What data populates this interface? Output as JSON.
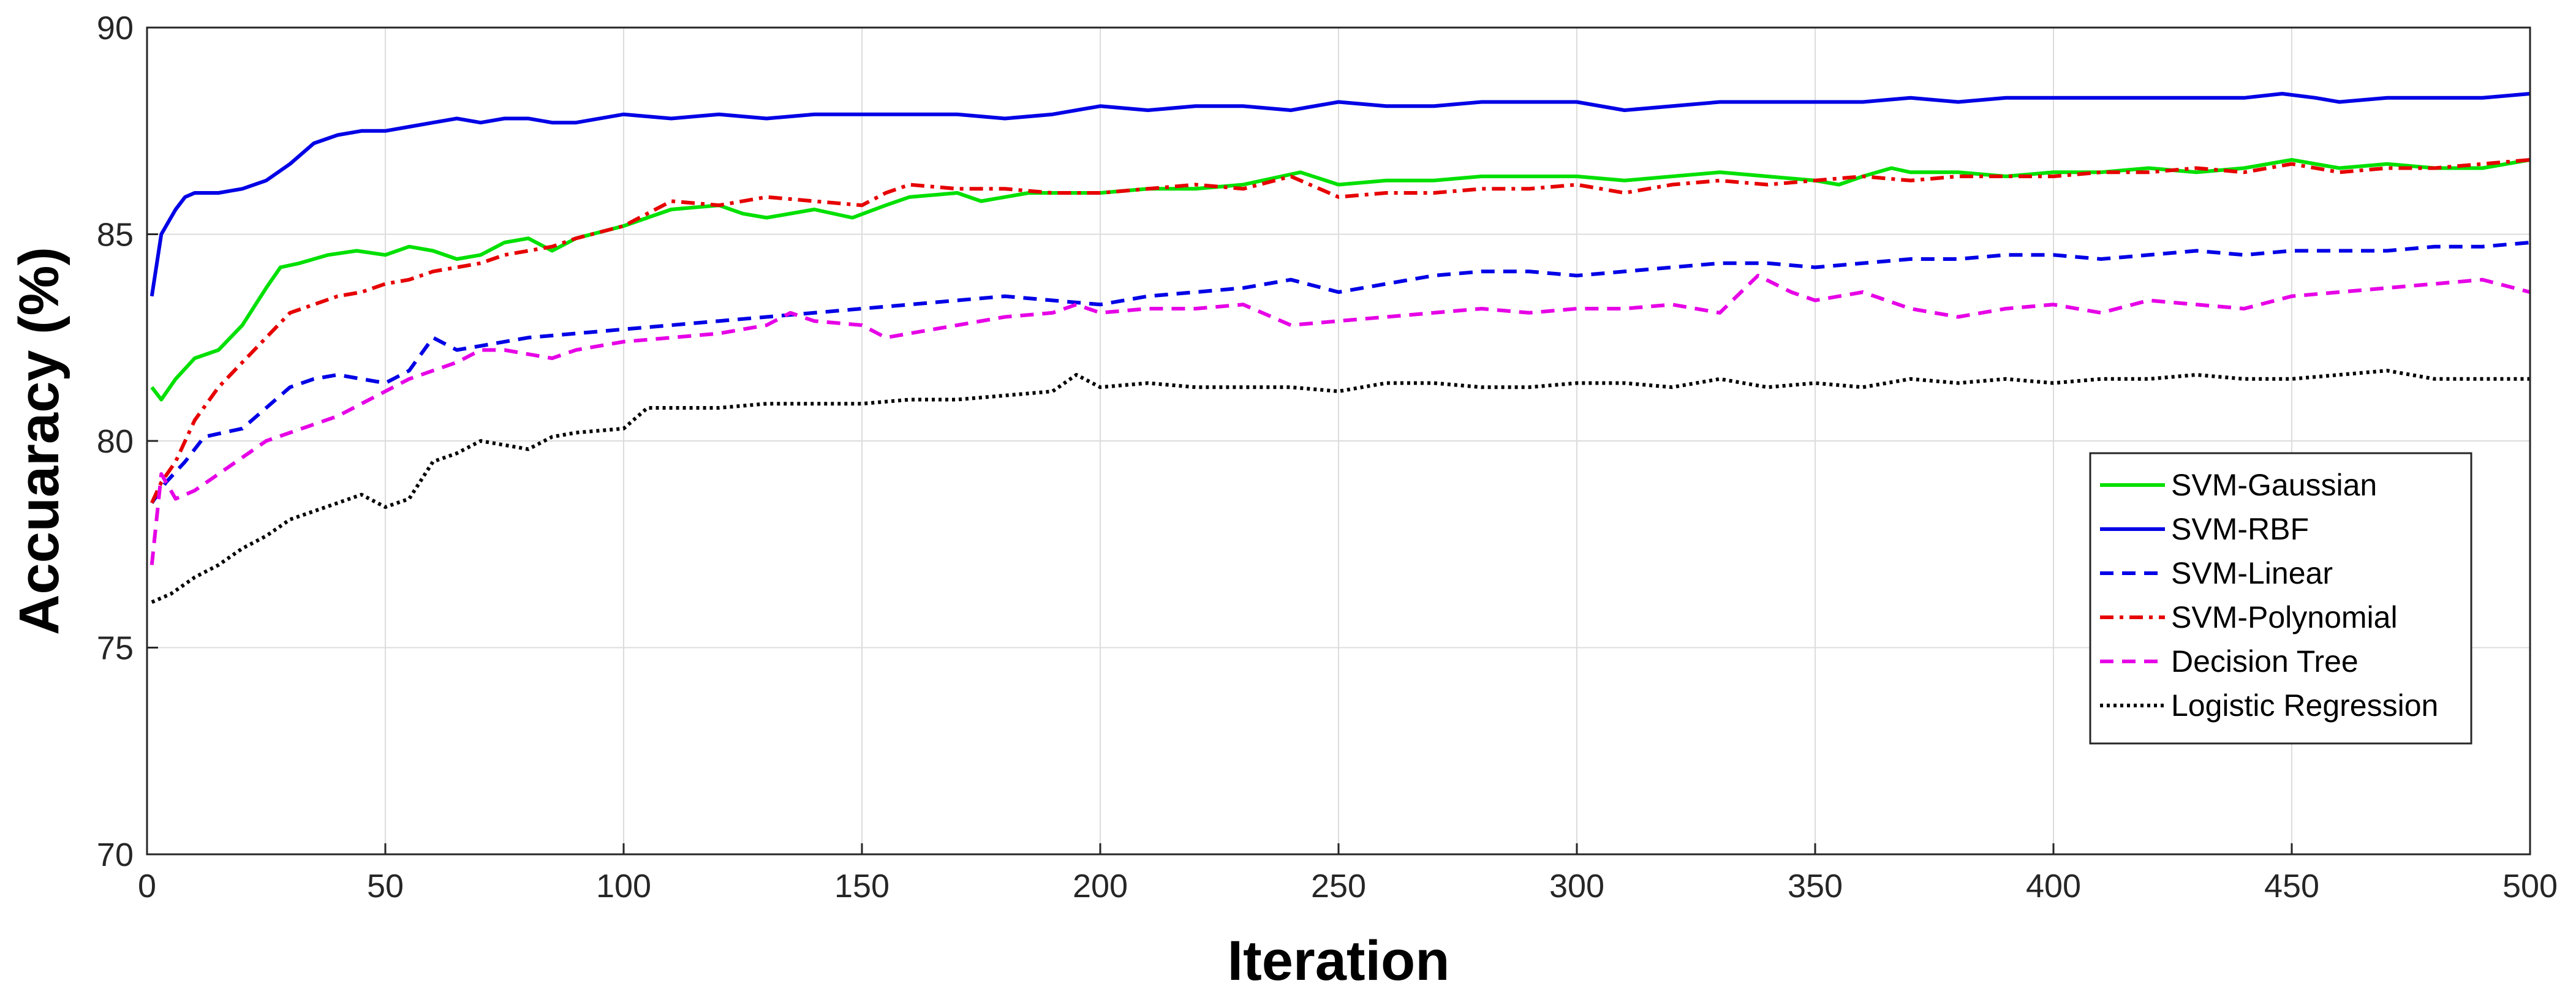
{
  "chart_data": {
    "type": "line",
    "title": "",
    "xlabel": "Iteration",
    "ylabel": "Accuaracy (%)",
    "xlim": [
      0,
      500
    ],
    "ylim": [
      70,
      90
    ],
    "xticks": [
      0,
      50,
      100,
      150,
      200,
      250,
      300,
      350,
      400,
      450,
      500
    ],
    "yticks": [
      70,
      75,
      80,
      85,
      90
    ],
    "grid": true,
    "legend_position": "right",
    "series": [
      {
        "name": "SVM-Gaussian",
        "color": "#00e000",
        "dash": "solid",
        "x": [
          1,
          3,
          6,
          10,
          15,
          20,
          25,
          28,
          32,
          38,
          44,
          50,
          55,
          60,
          65,
          70,
          75,
          80,
          85,
          90,
          100,
          110,
          120,
          125,
          130,
          140,
          148,
          155,
          160,
          170,
          175,
          185,
          190,
          200,
          210,
          220,
          230,
          242,
          250,
          260,
          270,
          280,
          290,
          300,
          310,
          320,
          330,
          340,
          350,
          355,
          360,
          366,
          370,
          380,
          390,
          400,
          410,
          420,
          430,
          440,
          450,
          460,
          470,
          480,
          490,
          500
        ],
        "y": [
          81.3,
          81.0,
          81.5,
          82.0,
          82.2,
          82.8,
          83.7,
          84.2,
          84.3,
          84.5,
          84.6,
          84.5,
          84.7,
          84.6,
          84.4,
          84.5,
          84.8,
          84.9,
          84.6,
          84.9,
          85.2,
          85.6,
          85.7,
          85.5,
          85.4,
          85.6,
          85.4,
          85.7,
          85.9,
          86.0,
          85.8,
          86.0,
          86.0,
          86.0,
          86.1,
          86.1,
          86.2,
          86.5,
          86.2,
          86.3,
          86.3,
          86.4,
          86.4,
          86.4,
          86.3,
          86.4,
          86.5,
          86.4,
          86.3,
          86.2,
          86.4,
          86.6,
          86.5,
          86.5,
          86.4,
          86.5,
          86.5,
          86.6,
          86.5,
          86.6,
          86.8,
          86.6,
          86.7,
          86.6,
          86.6,
          86.8
        ]
      },
      {
        "name": "SVM-RBF",
        "color": "#0000e6",
        "dash": "solid",
        "x": [
          1,
          3,
          6,
          8,
          10,
          15,
          20,
          25,
          30,
          35,
          40,
          45,
          50,
          55,
          60,
          65,
          70,
          75,
          80,
          85,
          90,
          100,
          110,
          120,
          130,
          140,
          150,
          160,
          170,
          180,
          190,
          200,
          210,
          220,
          230,
          240,
          250,
          260,
          270,
          280,
          290,
          300,
          310,
          320,
          330,
          340,
          350,
          360,
          370,
          380,
          390,
          400,
          410,
          420,
          430,
          440,
          448,
          455,
          460,
          470,
          480,
          490,
          500
        ],
        "y": [
          83.5,
          85.0,
          85.6,
          85.9,
          86.0,
          86.0,
          86.1,
          86.3,
          86.7,
          87.2,
          87.4,
          87.5,
          87.5,
          87.6,
          87.7,
          87.8,
          87.7,
          87.8,
          87.8,
          87.7,
          87.7,
          87.9,
          87.8,
          87.9,
          87.8,
          87.9,
          87.9,
          87.9,
          87.9,
          87.8,
          87.9,
          88.1,
          88.0,
          88.1,
          88.1,
          88.0,
          88.2,
          88.1,
          88.1,
          88.2,
          88.2,
          88.2,
          88.0,
          88.1,
          88.2,
          88.2,
          88.2,
          88.2,
          88.3,
          88.2,
          88.3,
          88.3,
          88.3,
          88.3,
          88.3,
          88.3,
          88.4,
          88.3,
          88.2,
          88.3,
          88.3,
          88.3,
          88.4
        ]
      },
      {
        "name": "SVM-Linear",
        "color": "#0000e6",
        "dash": "dashed",
        "x": [
          1,
          4,
          8,
          12,
          16,
          20,
          25,
          30,
          35,
          40,
          45,
          50,
          55,
          60,
          65,
          70,
          80,
          90,
          100,
          110,
          120,
          130,
          140,
          150,
          160,
          170,
          180,
          190,
          200,
          210,
          220,
          230,
          240,
          250,
          260,
          270,
          280,
          290,
          300,
          310,
          320,
          330,
          340,
          350,
          360,
          370,
          380,
          390,
          400,
          410,
          420,
          430,
          440,
          450,
          460,
          470,
          480,
          490,
          500
        ],
        "y": [
          78.5,
          79.0,
          79.5,
          80.1,
          80.2,
          80.3,
          80.8,
          81.3,
          81.5,
          81.6,
          81.5,
          81.4,
          81.7,
          82.5,
          82.2,
          82.3,
          82.5,
          82.6,
          82.7,
          82.8,
          82.9,
          83.0,
          83.1,
          83.2,
          83.3,
          83.4,
          83.5,
          83.4,
          83.3,
          83.5,
          83.6,
          83.7,
          83.9,
          83.6,
          83.8,
          84.0,
          84.1,
          84.1,
          84.0,
          84.1,
          84.2,
          84.3,
          84.3,
          84.2,
          84.3,
          84.4,
          84.4,
          84.5,
          84.5,
          84.4,
          84.5,
          84.6,
          84.5,
          84.6,
          84.6,
          84.6,
          84.7,
          84.7,
          84.8
        ]
      },
      {
        "name": "SVM-Polynomial",
        "color": "#e60000",
        "dash": "dashdot",
        "x": [
          1,
          3,
          6,
          10,
          15,
          20,
          25,
          30,
          35,
          40,
          45,
          50,
          55,
          60,
          65,
          70,
          75,
          80,
          85,
          90,
          100,
          110,
          120,
          130,
          140,
          150,
          155,
          160,
          170,
          180,
          190,
          200,
          210,
          220,
          230,
          240,
          250,
          260,
          270,
          280,
          290,
          300,
          310,
          320,
          330,
          340,
          350,
          360,
          370,
          380,
          390,
          400,
          410,
          420,
          430,
          440,
          450,
          460,
          470,
          480,
          490,
          500
        ],
        "y": [
          78.5,
          79.0,
          79.5,
          80.5,
          81.3,
          81.9,
          82.5,
          83.1,
          83.3,
          83.5,
          83.6,
          83.8,
          83.9,
          84.1,
          84.2,
          84.3,
          84.5,
          84.6,
          84.7,
          84.9,
          85.2,
          85.8,
          85.7,
          85.9,
          85.8,
          85.7,
          86.0,
          86.2,
          86.1,
          86.1,
          86.0,
          86.0,
          86.1,
          86.2,
          86.1,
          86.4,
          85.9,
          86.0,
          86.0,
          86.1,
          86.1,
          86.2,
          86.0,
          86.2,
          86.3,
          86.2,
          86.3,
          86.4,
          86.3,
          86.4,
          86.4,
          86.4,
          86.5,
          86.5,
          86.6,
          86.5,
          86.7,
          86.5,
          86.6,
          86.6,
          86.7,
          86.8
        ]
      },
      {
        "name": "Decision Tree",
        "color": "#e600e6",
        "dash": "dashed",
        "x": [
          1,
          3,
          6,
          10,
          15,
          20,
          25,
          30,
          35,
          40,
          45,
          50,
          55,
          60,
          65,
          70,
          75,
          80,
          85,
          90,
          100,
          110,
          120,
          130,
          135,
          140,
          150,
          155,
          160,
          170,
          180,
          190,
          195,
          200,
          210,
          220,
          230,
          240,
          250,
          260,
          270,
          280,
          290,
          300,
          310,
          320,
          330,
          338,
          345,
          350,
          360,
          370,
          380,
          390,
          400,
          410,
          420,
          430,
          440,
          450,
          460,
          470,
          480,
          490,
          500
        ],
        "y": [
          77.0,
          79.2,
          78.6,
          78.8,
          79.2,
          79.6,
          80.0,
          80.2,
          80.4,
          80.6,
          80.9,
          81.2,
          81.5,
          81.7,
          81.9,
          82.2,
          82.2,
          82.1,
          82.0,
          82.2,
          82.4,
          82.5,
          82.6,
          82.8,
          83.1,
          82.9,
          82.8,
          82.5,
          82.6,
          82.8,
          83.0,
          83.1,
          83.3,
          83.1,
          83.2,
          83.2,
          83.3,
          82.8,
          82.9,
          83.0,
          83.1,
          83.2,
          83.1,
          83.2,
          83.2,
          83.3,
          83.1,
          84.0,
          83.6,
          83.4,
          83.6,
          83.2,
          83.0,
          83.2,
          83.3,
          83.1,
          83.4,
          83.3,
          83.2,
          83.5,
          83.6,
          83.7,
          83.8,
          83.9,
          83.6
        ]
      },
      {
        "name": "Logistic Regression",
        "color": "#000000",
        "dash": "dotted",
        "x": [
          1,
          5,
          10,
          15,
          20,
          25,
          30,
          35,
          40,
          45,
          50,
          55,
          60,
          65,
          70,
          75,
          80,
          85,
          90,
          100,
          105,
          110,
          120,
          130,
          140,
          150,
          160,
          170,
          180,
          190,
          195,
          200,
          210,
          220,
          230,
          240,
          250,
          260,
          270,
          280,
          290,
          300,
          310,
          320,
          330,
          340,
          350,
          360,
          370,
          380,
          390,
          400,
          410,
          420,
          430,
          440,
          450,
          460,
          470,
          480,
          490,
          500
        ],
        "y": [
          76.1,
          76.3,
          76.7,
          77.0,
          77.4,
          77.7,
          78.1,
          78.3,
          78.5,
          78.7,
          78.4,
          78.6,
          79.5,
          79.7,
          80.0,
          79.9,
          79.8,
          80.1,
          80.2,
          80.3,
          80.8,
          80.8,
          80.8,
          80.9,
          80.9,
          80.9,
          81.0,
          81.0,
          81.1,
          81.2,
          81.6,
          81.3,
          81.4,
          81.3,
          81.3,
          81.3,
          81.2,
          81.4,
          81.4,
          81.3,
          81.3,
          81.4,
          81.4,
          81.3,
          81.5,
          81.3,
          81.4,
          81.3,
          81.5,
          81.4,
          81.5,
          81.4,
          81.5,
          81.5,
          81.6,
          81.5,
          81.5,
          81.6,
          81.7,
          81.5,
          81.5,
          81.5
        ]
      }
    ]
  }
}
